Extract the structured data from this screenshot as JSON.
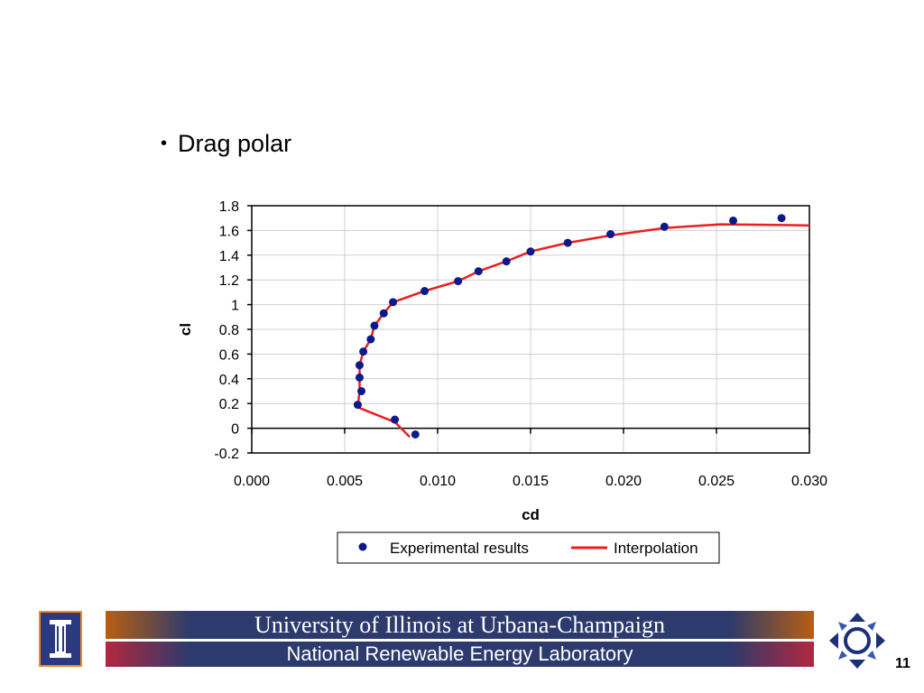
{
  "slide": {
    "bullet_text": "Drag polar",
    "number": "11"
  },
  "footer": {
    "line1": "University of Illinois at Urbana-Champaign",
    "line2": "National Renewable Energy Laboratory"
  },
  "chart_data": {
    "type": "scatter",
    "xlabel": "cd",
    "ylabel": "cl",
    "xlim": [
      0.0,
      0.03
    ],
    "ylim": [
      -0.2,
      1.8
    ],
    "xticks": [
      "0.000",
      "0.005",
      "0.010",
      "0.015",
      "0.020",
      "0.025",
      "0.030"
    ],
    "yticks": [
      "-0.2",
      "0",
      "0.2",
      "0.4",
      "0.6",
      "0.8",
      "1",
      "1.2",
      "1.4",
      "1.6",
      "1.8"
    ],
    "grid": true,
    "legend_position": "bottom",
    "series": [
      {
        "name": "Experimental results",
        "kind": "scatter",
        "color": "#0a1a8c",
        "points": [
          [
            0.0088,
            -0.05
          ],
          [
            0.0077,
            0.07
          ],
          [
            0.0057,
            0.19
          ],
          [
            0.0059,
            0.3
          ],
          [
            0.0058,
            0.41
          ],
          [
            0.0058,
            0.51
          ],
          [
            0.006,
            0.62
          ],
          [
            0.0064,
            0.72
          ],
          [
            0.0066,
            0.83
          ],
          [
            0.0071,
            0.93
          ],
          [
            0.0076,
            1.02
          ],
          [
            0.0093,
            1.11
          ],
          [
            0.0111,
            1.19
          ],
          [
            0.0122,
            1.27
          ],
          [
            0.0137,
            1.35
          ],
          [
            0.015,
            1.43
          ],
          [
            0.017,
            1.5
          ],
          [
            0.0193,
            1.57
          ],
          [
            0.0222,
            1.63
          ],
          [
            0.0259,
            1.68
          ],
          [
            0.0285,
            1.7
          ]
        ]
      },
      {
        "name": "Interpolation",
        "kind": "line",
        "color": "#ee1c1c",
        "points": [
          [
            0.0085,
            -0.07
          ],
          [
            0.0077,
            0.05
          ],
          [
            0.0057,
            0.17
          ],
          [
            0.0058,
            0.3
          ],
          [
            0.0058,
            0.41
          ],
          [
            0.0058,
            0.51
          ],
          [
            0.006,
            0.62
          ],
          [
            0.0064,
            0.72
          ],
          [
            0.0066,
            0.83
          ],
          [
            0.0071,
            0.93
          ],
          [
            0.0076,
            1.02
          ],
          [
            0.0093,
            1.11
          ],
          [
            0.0111,
            1.19
          ],
          [
            0.0122,
            1.27
          ],
          [
            0.0137,
            1.35
          ],
          [
            0.015,
            1.43
          ],
          [
            0.017,
            1.5
          ],
          [
            0.0193,
            1.56
          ],
          [
            0.0222,
            1.62
          ],
          [
            0.0252,
            1.65
          ],
          [
            0.0282,
            1.645
          ],
          [
            0.03,
            1.64
          ]
        ]
      }
    ]
  }
}
